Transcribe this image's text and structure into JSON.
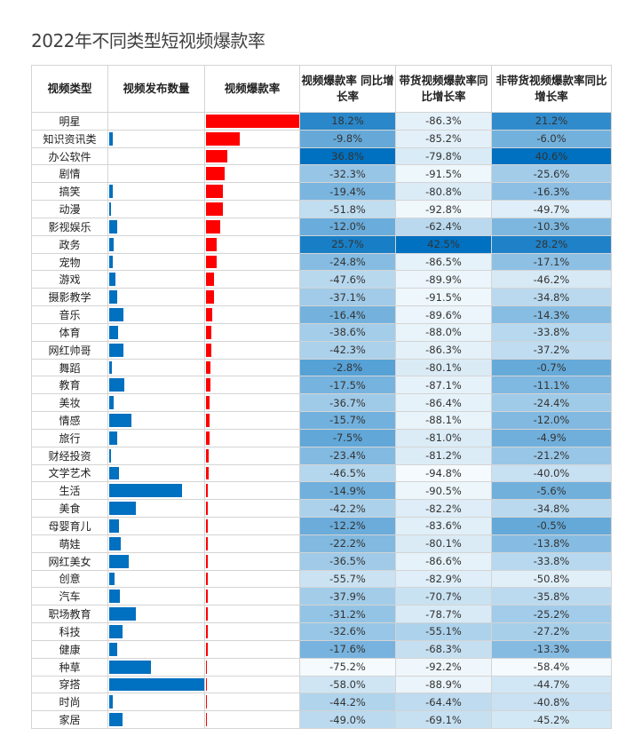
{
  "chart_data": {
    "type": "table",
    "title": "2022年不同类型短视频爆款率",
    "columns": [
      "视频类型",
      "视频发布数量",
      "视频爆款率",
      "视频爆款率 同比增长率",
      "带货视频爆款率同比增长率",
      "非带货视频爆款率同比增长率"
    ],
    "colors": {
      "count_bar": "#0070c0",
      "rate_bar": "#ff0000",
      "heat_low": "#f4fafd",
      "heat_high": "#0070c0"
    },
    "rows": [
      {
        "type": "明星",
        "count_rel": 0,
        "rate_rel": 1.0,
        "yoy": "18.2%",
        "yoy_sell": "-86.3%",
        "yoy_nonsell": "21.2%"
      },
      {
        "type": "知识资讯类",
        "count_rel": 0.04,
        "rate_rel": 0.36,
        "yoy": "-9.8%",
        "yoy_sell": "-85.2%",
        "yoy_nonsell": "-6.0%"
      },
      {
        "type": "办公软件",
        "count_rel": 0,
        "rate_rel": 0.23,
        "yoy": "36.8%",
        "yoy_sell": "-79.8%",
        "yoy_nonsell": "40.6%"
      },
      {
        "type": "剧情",
        "count_rel": 0,
        "rate_rel": 0.2,
        "yoy": "-32.3%",
        "yoy_sell": "-91.5%",
        "yoy_nonsell": "-25.6%"
      },
      {
        "type": "搞笑",
        "count_rel": 0.04,
        "rate_rel": 0.18,
        "yoy": "-19.4%",
        "yoy_sell": "-80.8%",
        "yoy_nonsell": "-16.3%"
      },
      {
        "type": "动漫",
        "count_rel": 0.02,
        "rate_rel": 0.18,
        "yoy": "-51.8%",
        "yoy_sell": "-92.8%",
        "yoy_nonsell": "-49.7%"
      },
      {
        "type": "影视娱乐",
        "count_rel": 0.08,
        "rate_rel": 0.15,
        "yoy": "-12.0%",
        "yoy_sell": "-62.4%",
        "yoy_nonsell": "-10.3%"
      },
      {
        "type": "政务",
        "count_rel": 0.05,
        "rate_rel": 0.11,
        "yoy": "25.7%",
        "yoy_sell": "42.5%",
        "yoy_nonsell": "28.2%"
      },
      {
        "type": "宠物",
        "count_rel": 0.04,
        "rate_rel": 0.11,
        "yoy": "-24.8%",
        "yoy_sell": "-86.5%",
        "yoy_nonsell": "-17.1%"
      },
      {
        "type": "游戏",
        "count_rel": 0.07,
        "rate_rel": 0.085,
        "yoy": "-47.6%",
        "yoy_sell": "-89.9%",
        "yoy_nonsell": "-46.2%"
      },
      {
        "type": "摄影教学",
        "count_rel": 0.08,
        "rate_rel": 0.085,
        "yoy": "-37.1%",
        "yoy_sell": "-91.5%",
        "yoy_nonsell": "-34.8%"
      },
      {
        "type": "音乐",
        "count_rel": 0.15,
        "rate_rel": 0.065,
        "yoy": "-16.4%",
        "yoy_sell": "-89.6%",
        "yoy_nonsell": "-14.3%"
      },
      {
        "type": "体育",
        "count_rel": 0.09,
        "rate_rel": 0.055,
        "yoy": "-38.6%",
        "yoy_sell": "-88.0%",
        "yoy_nonsell": "-33.8%"
      },
      {
        "type": "网红帅哥",
        "count_rel": 0.15,
        "rate_rel": 0.055,
        "yoy": "-42.3%",
        "yoy_sell": "-86.3%",
        "yoy_nonsell": "-37.2%"
      },
      {
        "type": "舞蹈",
        "count_rel": 0.03,
        "rate_rel": 0.045,
        "yoy": "-2.8%",
        "yoy_sell": "-80.1%",
        "yoy_nonsell": "-0.7%"
      },
      {
        "type": "教育",
        "count_rel": 0.16,
        "rate_rel": 0.045,
        "yoy": "-17.5%",
        "yoy_sell": "-87.1%",
        "yoy_nonsell": "-11.1%"
      },
      {
        "type": "美妆",
        "count_rel": 0.05,
        "rate_rel": 0.04,
        "yoy": "-36.7%",
        "yoy_sell": "-86.4%",
        "yoy_nonsell": "-24.4%"
      },
      {
        "type": "情感",
        "count_rel": 0.23,
        "rate_rel": 0.04,
        "yoy": "-15.7%",
        "yoy_sell": "-88.1%",
        "yoy_nonsell": "-12.0%"
      },
      {
        "type": "旅行",
        "count_rel": 0.08,
        "rate_rel": 0.04,
        "yoy": "-7.5%",
        "yoy_sell": "-81.0%",
        "yoy_nonsell": "-4.9%"
      },
      {
        "type": "财经投资",
        "count_rel": 0.02,
        "rate_rel": 0.03,
        "yoy": "-23.4%",
        "yoy_sell": "-81.2%",
        "yoy_nonsell": "-21.2%"
      },
      {
        "type": "文学艺术",
        "count_rel": 0.1,
        "rate_rel": 0.03,
        "yoy": "-46.5%",
        "yoy_sell": "-94.8%",
        "yoy_nonsell": "-40.0%"
      },
      {
        "type": "生活",
        "count_rel": 0.77,
        "rate_rel": 0.02,
        "yoy": "-14.9%",
        "yoy_sell": "-90.5%",
        "yoy_nonsell": "-5.6%"
      },
      {
        "type": "美食",
        "count_rel": 0.28,
        "rate_rel": 0.02,
        "yoy": "-42.2%",
        "yoy_sell": "-82.2%",
        "yoy_nonsell": "-34.8%"
      },
      {
        "type": "母婴育儿",
        "count_rel": 0.1,
        "rate_rel": 0.02,
        "yoy": "-12.2%",
        "yoy_sell": "-83.6%",
        "yoy_nonsell": "-0.5%"
      },
      {
        "type": "萌娃",
        "count_rel": 0.12,
        "rate_rel": 0.02,
        "yoy": "-22.2%",
        "yoy_sell": "-80.1%",
        "yoy_nonsell": "-13.8%"
      },
      {
        "type": "网红美女",
        "count_rel": 0.21,
        "rate_rel": 0.02,
        "yoy": "-36.5%",
        "yoy_sell": "-86.6%",
        "yoy_nonsell": "-33.8%"
      },
      {
        "type": "创意",
        "count_rel": 0.06,
        "rate_rel": 0.02,
        "yoy": "-55.7%",
        "yoy_sell": "-82.9%",
        "yoy_nonsell": "-50.8%"
      },
      {
        "type": "汽车",
        "count_rel": 0.11,
        "rate_rel": 0.02,
        "yoy": "-37.9%",
        "yoy_sell": "-70.7%",
        "yoy_nonsell": "-35.8%"
      },
      {
        "type": "职场教育",
        "count_rel": 0.28,
        "rate_rel": 0.015,
        "yoy": "-31.2%",
        "yoy_sell": "-78.7%",
        "yoy_nonsell": "-25.2%"
      },
      {
        "type": "科技",
        "count_rel": 0.14,
        "rate_rel": 0.015,
        "yoy": "-32.6%",
        "yoy_sell": "-55.1%",
        "yoy_nonsell": "-27.2%"
      },
      {
        "type": "健康",
        "count_rel": 0.08,
        "rate_rel": 0.015,
        "yoy": "-17.6%",
        "yoy_sell": "-68.3%",
        "yoy_nonsell": "-13.3%"
      },
      {
        "type": "种草",
        "count_rel": 0.44,
        "rate_rel": 0.012,
        "yoy": "-75.2%",
        "yoy_sell": "-92.2%",
        "yoy_nonsell": "-58.4%"
      },
      {
        "type": "穿搭",
        "count_rel": 1.0,
        "rate_rel": 0.012,
        "yoy": "-58.0%",
        "yoy_sell": "-88.9%",
        "yoy_nonsell": "-44.7%"
      },
      {
        "type": "时尚",
        "count_rel": 0.04,
        "rate_rel": 0.01,
        "yoy": "-44.2%",
        "yoy_sell": "-64.4%",
        "yoy_nonsell": "-40.8%"
      },
      {
        "type": "家居",
        "count_rel": 0.14,
        "rate_rel": 0.01,
        "yoy": "-49.0%",
        "yoy_sell": "-69.1%",
        "yoy_nonsell": "-45.2%"
      }
    ]
  }
}
